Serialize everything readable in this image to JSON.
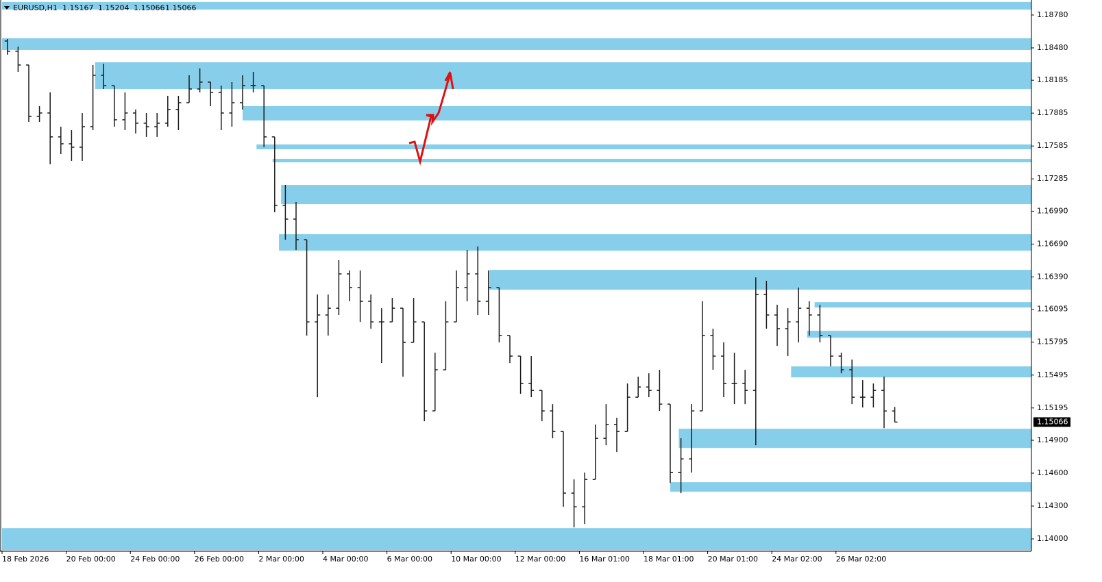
{
  "chart_data": {
    "type": "ohlc",
    "symbol": "EURUSD,H1",
    "categories": [
      "18 Feb 2026",
      null,
      null,
      null,
      null,
      null,
      "20 Feb 00:00",
      null,
      null,
      null,
      null,
      null,
      "24 Feb 00:00",
      null,
      null,
      null,
      null,
      null,
      "26 Feb 00:00",
      null,
      null,
      null,
      null,
      null,
      "2 Mar 00:00",
      null,
      null,
      null,
      null,
      null,
      "4 Mar 00:00",
      null,
      null,
      null,
      null,
      null,
      "6 Mar 00:00",
      null,
      null,
      null,
      null,
      null,
      "10 Mar 00:00",
      null,
      null,
      null,
      null,
      null,
      "12 Mar 00:00",
      null,
      null,
      null,
      null,
      null,
      "16 Mar 01:00",
      null,
      null,
      null,
      null,
      null,
      "18 Mar 01:00",
      null,
      null,
      null,
      null,
      null,
      "20 Mar 01:00",
      null,
      null,
      null,
      null,
      null,
      "24 Mar 02:00",
      null,
      null,
      null,
      null,
      null,
      "26 Mar 02:00",
      null,
      null,
      null,
      null,
      null
    ],
    "open": [
      1.18543,
      1.18449,
      1.18324,
      1.17855,
      1.17886,
      1.17668,
      1.17605,
      1.17574,
      1.17761,
      1.1823,
      1.18136,
      1.17824,
      1.17886,
      1.17793,
      1.17761,
      1.17793,
      1.17918,
      1.1798,
      1.18105,
      1.18168,
      1.18074,
      1.17886,
      1.1798,
      1.18136,
      1.18136,
      1.17668,
      1.17043,
      1.16918,
      1.1673,
      1.1598,
      1.16043,
      1.16105,
      1.16418,
      1.16293,
      1.16168,
      1.1598,
      1.1598,
      1.16105,
      1.15793,
      1.1598,
      1.15168,
      1.15543,
      1.1598,
      1.16293,
      1.16418,
      1.16168,
      1.16293,
      1.15855,
      1.15668,
      1.15418,
      1.15355,
      1.15168,
      1.1498,
      1.14418,
      1.14293,
      1.14543,
      1.14918,
      1.15043,
      1.1498,
      1.15293,
      1.15386,
      1.15355,
      1.1523,
      1.14605,
      1.1473,
      1.15168,
      1.15855,
      1.15668,
      1.15418,
      1.15418,
      1.15355,
      1.1623,
      1.16043,
      1.15918,
      1.1598,
      1.16105,
      1.16043,
      1.15855,
      1.15668,
      1.15543,
      1.15293,
      1.15293,
      1.15355,
      1.15167
    ],
    "high": [
      1.18561,
      1.18492,
      1.18324,
      1.17949,
      1.18074,
      1.17761,
      1.1773,
      1.17886,
      1.18324,
      1.18336,
      1.18136,
      1.18074,
      1.17918,
      1.17886,
      1.17886,
      1.18043,
      1.18043,
      1.1823,
      1.18293,
      1.18168,
      1.18136,
      1.18168,
      1.1823,
      1.18261,
      1.18136,
      1.17668,
      1.1723,
      1.17074,
      1.1673,
      1.1623,
      1.1623,
      1.16543,
      1.16449,
      1.16449,
      1.1623,
      1.16105,
      1.16199,
      1.16105,
      1.16199,
      1.1598,
      1.15699,
      1.16168,
      1.16449,
      1.16636,
      1.16668,
      1.16449,
      1.16293,
      1.15855,
      1.15668,
      1.15668,
      1.15355,
      1.1523,
      1.1498,
      1.14543,
      1.14605,
      1.15043,
      1.1523,
      1.15105,
      1.15418,
      1.1548,
      1.15511,
      1.15543,
      1.1523,
      1.14918,
      1.1523,
      1.16168,
      1.15918,
      1.15793,
      1.15699,
      1.15543,
      1.16386,
      1.16355,
      1.16136,
      1.16105,
      1.16293,
      1.16168,
      1.16136,
      1.15855,
      1.15699,
      1.15636,
      1.15449,
      1.15418,
      1.1548,
      1.15204
    ],
    "low": [
      1.18418,
      1.18261,
      1.17805,
      1.17805,
      1.17418,
      1.17511,
      1.17449,
      1.17449,
      1.1773,
      1.18105,
      1.17761,
      1.1773,
      1.17699,
      1.17668,
      1.17668,
      1.17761,
      1.1773,
      1.1798,
      1.18074,
      1.17949,
      1.1773,
      1.17761,
      1.17918,
      1.18074,
      1.17574,
      1.1698,
      1.1673,
      1.16636,
      1.15855,
      1.15293,
      1.15855,
      1.16043,
      1.16168,
      1.1598,
      1.15918,
      1.15605,
      1.1598,
      1.1548,
      1.15793,
      1.15074,
      1.15168,
      1.15543,
      1.1598,
      1.16168,
      1.16043,
      1.16043,
      1.15793,
      1.15605,
      1.15324,
      1.15293,
      1.15074,
      1.14918,
      1.14293,
      1.14105,
      1.14136,
      1.14543,
      1.14855,
      1.14793,
      1.1498,
      1.15293,
      1.15293,
      1.15168,
      1.14511,
      1.14418,
      1.14605,
      1.15168,
      1.15543,
      1.15293,
      1.1523,
      1.1523,
      1.14855,
      1.15918,
      1.15761,
      1.15668,
      1.15793,
      1.15855,
      1.15793,
      1.15574,
      1.15511,
      1.1523,
      1.15199,
      1.15199,
      1.15011,
      1.15066
    ],
    "close": [
      1.18449,
      1.18324,
      1.17855,
      1.17886,
      1.17668,
      1.17605,
      1.17574,
      1.17761,
      1.1823,
      1.18136,
      1.17824,
      1.17886,
      1.17793,
      1.17761,
      1.17793,
      1.17918,
      1.1798,
      1.18105,
      1.18168,
      1.18074,
      1.17886,
      1.1798,
      1.18136,
      1.18136,
      1.17668,
      1.17043,
      1.16918,
      1.1673,
      1.1598,
      1.16043,
      1.16105,
      1.16418,
      1.16293,
      1.16168,
      1.1598,
      1.1598,
      1.16105,
      1.15793,
      1.1598,
      1.15168,
      1.15543,
      1.1598,
      1.16293,
      1.16418,
      1.16168,
      1.16293,
      1.15855,
      1.15668,
      1.15418,
      1.15355,
      1.15168,
      1.1498,
      1.14418,
      1.14293,
      1.14543,
      1.14918,
      1.15043,
      1.1498,
      1.15293,
      1.15386,
      1.15355,
      1.1523,
      1.14605,
      1.1473,
      1.15168,
      1.15855,
      1.15668,
      1.15418,
      1.15418,
      1.15355,
      1.1623,
      1.16043,
      1.15918,
      1.1598,
      1.16105,
      1.16043,
      1.15855,
      1.15668,
      1.15543,
      1.15293,
      1.15293,
      1.15355,
      1.15167,
      1.15066
    ],
    "bar_color": "#1a1a1a",
    "zone_color": "#87ceeb",
    "zones": [
      {
        "top": 1.18899,
        "bottom": 1.1883,
        "start": 0
      },
      {
        "top": 1.18568,
        "bottom": 1.18461,
        "start": 0
      },
      {
        "top": 1.18349,
        "bottom": 1.18105,
        "start": 8.7
      },
      {
        "top": 1.17949,
        "bottom": 1.17818,
        "start": 22.5
      },
      {
        "top": 1.17599,
        "bottom": 1.17555,
        "start": 23.8
      },
      {
        "top": 1.17468,
        "bottom": 1.17436,
        "start": 25.3
      },
      {
        "top": 1.1723,
        "bottom": 1.17055,
        "start": 26.1
      },
      {
        "top": 1.1678,
        "bottom": 1.1663,
        "start": 25.9
      },
      {
        "top": 1.16455,
        "bottom": 1.16274,
        "start": 45.6
      },
      {
        "top": 1.16161,
        "bottom": 1.16111,
        "start": 76
      },
      {
        "top": 1.15899,
        "bottom": 1.15836,
        "start": 75.3
      },
      {
        "top": 1.15574,
        "bottom": 1.15474,
        "start": 73.8
      },
      {
        "top": 1.15005,
        "bottom": 1.1483,
        "start": 63.3
      },
      {
        "top": 1.14518,
        "bottom": 1.1443,
        "start": 62.5
      },
      {
        "top": 1.14099,
        "bottom": 1.13899,
        "start": 0
      }
    ],
    "ylim": [
      1.13888,
      1.18917
    ],
    "yticks": [
      {
        "value": 1.1878,
        "label": "1.18780"
      },
      {
        "value": 1.1848,
        "label": "1.18480"
      },
      1.18185,
      1.17885,
      1.17585,
      1.17285,
      {
        "value": 1.1699,
        "label": "1.16990"
      },
      {
        "value": 1.1669,
        "label": "1.16690"
      },
      {
        "value": 1.1639,
        "label": "1.16390"
      },
      1.16095,
      1.15795,
      1.15495,
      1.15195,
      {
        "value": 1.149,
        "label": "1.14900"
      },
      {
        "value": 1.146,
        "label": "1.14600"
      },
      {
        "value": 1.143,
        "label": "1.14300"
      },
      {
        "value": 1.14,
        "label": "1.14000"
      }
    ]
  }
}
